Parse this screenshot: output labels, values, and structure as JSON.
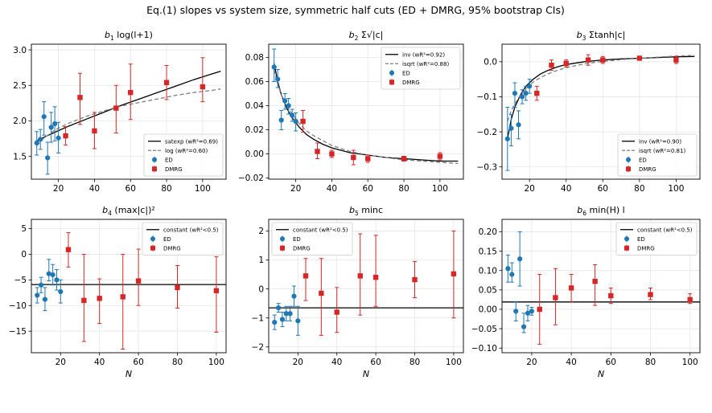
{
  "suptitle": "Eq.(1) slopes vs system size, symmetric half cuts (ED + DMRG, 95% bootstrap CIs)",
  "xlabel": "N",
  "legend_labels": {
    "ed": "ED",
    "dmrg": "DMRG"
  },
  "colors": {
    "ed": "#1f77b4",
    "dmrg": "#d62728",
    "fit_primary": "#000000",
    "fit_secondary": "#7f7f7f",
    "grid": "#e6e6e6"
  },
  "chart_data": [
    {
      "type": "scatter",
      "title": "b1  log(l+1)",
      "title_prefix": "b",
      "title_sub": "1",
      "title_rest": "log(l+1)",
      "xlim": [
        5,
        113
      ],
      "ylim": [
        1.18,
        3.08
      ],
      "xticks": [
        20,
        40,
        60,
        80,
        100
      ],
      "yticks": [
        1.5,
        2.0,
        2.5,
        3.0
      ],
      "ytick_labels": [
        "1.5",
        "2.0",
        "2.5",
        "3.0"
      ],
      "show_xlabel": false,
      "series": [
        {
          "name": "ED",
          "x": [
            8,
            10,
            12,
            14,
            16,
            18,
            20
          ],
          "y": [
            1.69,
            1.74,
            2.06,
            1.48,
            1.91,
            1.96,
            1.76
          ],
          "lo": [
            1.52,
            1.6,
            1.8,
            1.25,
            1.7,
            1.72,
            1.55
          ],
          "hi": [
            1.85,
            1.88,
            2.27,
            1.7,
            2.12,
            2.2,
            1.98
          ]
        },
        {
          "name": "DMRG",
          "x": [
            24,
            32,
            40,
            52,
            60,
            80,
            100
          ],
          "y": [
            1.79,
            2.33,
            1.86,
            2.18,
            2.4,
            2.54,
            2.48
          ],
          "lo": [
            1.66,
            1.95,
            1.61,
            1.83,
            2.02,
            2.3,
            2.27
          ],
          "hi": [
            1.92,
            2.67,
            2.12,
            2.5,
            2.8,
            2.78,
            2.89
          ]
        }
      ],
      "fits": [
        {
          "name": "satexp (wR²=0.69)",
          "style": "solid",
          "x": [
            8,
            12,
            18,
            25,
            35,
            45,
            55,
            65,
            75,
            85,
            95,
            105,
            110
          ],
          "y": [
            1.72,
            1.77,
            1.84,
            1.92,
            2.02,
            2.12,
            2.22,
            2.31,
            2.4,
            2.49,
            2.58,
            2.66,
            2.7
          ]
        },
        {
          "name": "log (wR²=0.60)",
          "style": "dashed",
          "x": [
            8,
            12,
            18,
            25,
            35,
            45,
            55,
            65,
            75,
            85,
            95,
            105,
            110
          ],
          "y": [
            1.65,
            1.76,
            1.87,
            1.96,
            2.06,
            2.14,
            2.21,
            2.26,
            2.31,
            2.36,
            2.4,
            2.43,
            2.45
          ]
        }
      ],
      "legend": "lower-right"
    },
    {
      "type": "scatter",
      "title": "b2  Σ√|c|",
      "title_prefix": "b",
      "title_sub": "2",
      "title_rest": "Σ√|c|",
      "xlim": [
        5,
        113
      ],
      "ylim": [
        -0.021,
        0.091
      ],
      "xticks": [
        20,
        40,
        60,
        80,
        100
      ],
      "yticks": [
        -0.02,
        0.0,
        0.02,
        0.04,
        0.06,
        0.08
      ],
      "ytick_labels": [
        "−0.02",
        "0.00",
        "0.02",
        "0.04",
        "0.06",
        "0.08"
      ],
      "show_xlabel": false,
      "series": [
        {
          "name": "ED",
          "x": [
            8,
            10,
            12,
            14,
            16,
            18,
            20
          ],
          "y": [
            0.072,
            0.062,
            0.028,
            0.044,
            0.04,
            0.032,
            0.027
          ],
          "lo": [
            0.06,
            0.055,
            0.02,
            0.037,
            0.033,
            0.027,
            0.019
          ],
          "hi": [
            0.087,
            0.07,
            0.036,
            0.05,
            0.046,
            0.037,
            0.034
          ]
        },
        {
          "name": "DMRG",
          "x": [
            24,
            32,
            40,
            52,
            60,
            80,
            100
          ],
          "y": [
            0.027,
            0.002,
            0.0,
            -0.003,
            -0.004,
            -0.004,
            -0.002
          ],
          "lo": [
            0.018,
            -0.004,
            -0.003,
            -0.009,
            -0.007,
            -0.006,
            -0.005
          ],
          "hi": [
            0.036,
            0.009,
            0.003,
            0.003,
            -0.001,
            -0.002,
            0.001
          ]
        }
      ],
      "fits": [
        {
          "name": "inv (wR²=0.92)",
          "style": "solid",
          "x": [
            8,
            10,
            12,
            15,
            18,
            22,
            26,
            30,
            35,
            40,
            50,
            60,
            70,
            80,
            90,
            100,
            110
          ],
          "y": [
            0.075,
            0.06,
            0.049,
            0.038,
            0.03,
            0.022,
            0.016,
            0.012,
            0.008,
            0.005,
            0.001,
            -0.001,
            -0.003,
            -0.004,
            -0.005,
            -0.006,
            -0.006
          ]
        },
        {
          "name": "isqrt (wR²=0.88)",
          "style": "dashed",
          "x": [
            8,
            10,
            12,
            15,
            18,
            22,
            26,
            30,
            35,
            40,
            50,
            60,
            70,
            80,
            90,
            100,
            110
          ],
          "y": [
            0.07,
            0.058,
            0.049,
            0.04,
            0.033,
            0.025,
            0.019,
            0.015,
            0.011,
            0.007,
            0.002,
            -0.001,
            -0.003,
            -0.005,
            -0.006,
            -0.007,
            -0.008
          ]
        }
      ],
      "legend": "upper-right"
    },
    {
      "type": "scatter",
      "title": "b3  Σtanh|c|",
      "title_prefix": "b",
      "title_sub": "3",
      "title_rest": "Σtanh|c|",
      "xlim": [
        5,
        113
      ],
      "ylim": [
        -0.335,
        0.05
      ],
      "xticks": [
        20,
        40,
        60,
        80,
        100
      ],
      "yticks": [
        -0.3,
        -0.2,
        -0.1,
        0.0
      ],
      "ytick_labels": [
        "−0.3",
        "−0.2",
        "−0.1",
        "0.0"
      ],
      "show_xlabel": false,
      "series": [
        {
          "name": "ED",
          "x": [
            8,
            10,
            12,
            14,
            16,
            18,
            20
          ],
          "y": [
            -0.22,
            -0.19,
            -0.09,
            -0.18,
            -0.1,
            -0.09,
            -0.07
          ],
          "lo": [
            -0.31,
            -0.24,
            -0.13,
            -0.22,
            -0.12,
            -0.11,
            -0.09
          ],
          "hi": [
            -0.13,
            -0.15,
            -0.06,
            -0.14,
            -0.08,
            -0.07,
            -0.05
          ]
        },
        {
          "name": "DMRG",
          "x": [
            24,
            32,
            40,
            52,
            60,
            80,
            100
          ],
          "y": [
            -0.09,
            -0.01,
            -0.005,
            0.005,
            0.005,
            0.01,
            0.005
          ],
          "lo": [
            -0.11,
            -0.025,
            -0.015,
            -0.01,
            -0.005,
            0.005,
            -0.005
          ],
          "hi": [
            -0.07,
            0.005,
            0.005,
            0.02,
            0.015,
            0.015,
            0.015
          ]
        }
      ],
      "fits": [
        {
          "name": "inv (wR²=0.90)",
          "style": "solid",
          "x": [
            8,
            10,
            12,
            15,
            18,
            22,
            26,
            30,
            35,
            40,
            50,
            60,
            70,
            80,
            90,
            100,
            110
          ],
          "y": [
            -0.22,
            -0.165,
            -0.13,
            -0.095,
            -0.07,
            -0.05,
            -0.035,
            -0.025,
            -0.015,
            -0.008,
            0.0,
            0.005,
            0.008,
            0.01,
            0.012,
            0.014,
            0.015
          ]
        },
        {
          "name": "isqrt (wR²=0.81)",
          "style": "dashed",
          "x": [
            8,
            10,
            12,
            15,
            18,
            22,
            26,
            30,
            35,
            40,
            50,
            60,
            70,
            80,
            90,
            100,
            110
          ],
          "y": [
            -0.17,
            -0.14,
            -0.12,
            -0.095,
            -0.077,
            -0.058,
            -0.045,
            -0.035,
            -0.025,
            -0.017,
            -0.006,
            0.001,
            0.006,
            0.01,
            0.013,
            0.016,
            0.018
          ]
        }
      ],
      "legend": "lower-right"
    },
    {
      "type": "scatter",
      "title": "b4  (max|c|)²",
      "title_prefix": "b",
      "title_sub": "4",
      "title_rest": "(max|c|)²",
      "xlim": [
        5,
        105
      ],
      "ylim": [
        -19.2,
        6.8
      ],
      "xticks": [
        20,
        40,
        60,
        80,
        100
      ],
      "yticks": [
        -15,
        -10,
        -5,
        0,
        5
      ],
      "ytick_labels": [
        "−15",
        "−10",
        "−5",
        "0",
        "5"
      ],
      "show_xlabel": true,
      "series": [
        {
          "name": "ED",
          "x": [
            8,
            10,
            12,
            14,
            16,
            18,
            20
          ],
          "y": [
            -8.0,
            -6.0,
            -8.8,
            -3.8,
            -4.0,
            -5.0,
            -7.3
          ],
          "lo": [
            -9.5,
            -7.5,
            -11.0,
            -5.2,
            -6.0,
            -7.0,
            -9.5
          ],
          "hi": [
            -6.5,
            -4.5,
            -6.5,
            -1.0,
            -2.0,
            -3.0,
            -5.0
          ]
        },
        {
          "name": "DMRG",
          "x": [
            24,
            32,
            40,
            52,
            60,
            80,
            100
          ],
          "y": [
            0.9,
            -9.0,
            -8.6,
            -8.3,
            -5.2,
            -6.5,
            -7.1
          ],
          "lo": [
            -2.5,
            -17.0,
            -13.5,
            -18.5,
            -10.0,
            -10.5,
            -15.2
          ],
          "hi": [
            4.2,
            0.0,
            -4.8,
            0.0,
            1.0,
            -2.2,
            -0.5
          ]
        }
      ],
      "fits": [
        {
          "name": "constant (wR²<0.5)",
          "style": "solid",
          "x": [
            5,
            105
          ],
          "y": [
            -5.9,
            -5.9
          ]
        }
      ],
      "legend": "upper-right"
    },
    {
      "type": "scatter",
      "title": "b5  minc",
      "title_prefix": "b",
      "title_sub": "5",
      "title_rest": "minc",
      "xlim": [
        5,
        105
      ],
      "ylim": [
        -2.2,
        2.4
      ],
      "xticks": [
        20,
        40,
        60,
        80,
        100
      ],
      "yticks": [
        -2,
        -1,
        0,
        1,
        2
      ],
      "ytick_labels": [
        "−2",
        "−1",
        "0",
        "1",
        "2"
      ],
      "show_xlabel": true,
      "series": [
        {
          "name": "ED",
          "x": [
            8,
            10,
            12,
            14,
            16,
            18,
            20
          ],
          "y": [
            -1.15,
            -0.65,
            -1.05,
            -0.85,
            -0.85,
            -0.25,
            -1.1
          ],
          "lo": [
            -1.4,
            -0.8,
            -1.3,
            -1.1,
            -1.1,
            -0.6,
            -1.6
          ],
          "hi": [
            -0.9,
            -0.5,
            -0.8,
            -0.6,
            -0.6,
            0.1,
            -0.6
          ]
        },
        {
          "name": "DMRG",
          "x": [
            24,
            32,
            40,
            52,
            60,
            80,
            100
          ],
          "y": [
            0.45,
            -0.15,
            -0.8,
            0.45,
            0.4,
            0.32,
            0.52
          ],
          "lo": [
            -0.4,
            -1.6,
            -1.5,
            -0.9,
            -0.6,
            -0.3,
            -1.0
          ],
          "hi": [
            1.05,
            1.05,
            0.05,
            1.9,
            1.85,
            0.95,
            2.0
          ]
        }
      ],
      "fits": [
        {
          "name": "constant (wR²<0.5)",
          "style": "solid",
          "x": [
            5,
            105
          ],
          "y": [
            -0.65,
            -0.65
          ]
        }
      ],
      "legend": "upper-left"
    },
    {
      "type": "scatter",
      "title": "b6  min(H) l",
      "title_prefix": "b",
      "title_sub": "6",
      "title_rest": "min(H) l",
      "xlim": [
        5,
        105
      ],
      "ylim": [
        -0.112,
        0.232
      ],
      "xticks": [
        20,
        40,
        60,
        80,
        100
      ],
      "yticks": [
        -0.1,
        -0.05,
        0.0,
        0.05,
        0.1,
        0.15,
        0.2
      ],
      "ytick_labels": [
        "−0.10",
        "−0.05",
        "0.00",
        "0.05",
        "0.10",
        "0.15",
        "0.20"
      ],
      "show_xlabel": true,
      "series": [
        {
          "name": "ED",
          "x": [
            8,
            10,
            12,
            14,
            16,
            18,
            20
          ],
          "y": [
            0.105,
            0.09,
            -0.005,
            0.13,
            -0.045,
            -0.01,
            -0.005
          ],
          "lo": [
            0.07,
            0.07,
            -0.03,
            0.06,
            -0.06,
            -0.03,
            -0.015
          ],
          "hi": [
            0.14,
            0.12,
            0.02,
            0.2,
            -0.01,
            0.01,
            0.005
          ]
        },
        {
          "name": "DMRG",
          "x": [
            24,
            32,
            40,
            52,
            60,
            80,
            100
          ],
          "y": [
            0.0,
            0.03,
            0.055,
            0.072,
            0.035,
            0.038,
            0.025
          ],
          "lo": [
            -0.09,
            -0.04,
            0.02,
            0.01,
            0.015,
            0.025,
            0.015
          ],
          "hi": [
            0.09,
            0.105,
            0.09,
            0.115,
            0.055,
            0.055,
            0.04
          ]
        }
      ],
      "fits": [
        {
          "name": "constant (wR²<0.5)",
          "style": "solid",
          "x": [
            5,
            105
          ],
          "y": [
            0.019,
            0.019
          ]
        }
      ],
      "legend": "upper-right"
    }
  ]
}
